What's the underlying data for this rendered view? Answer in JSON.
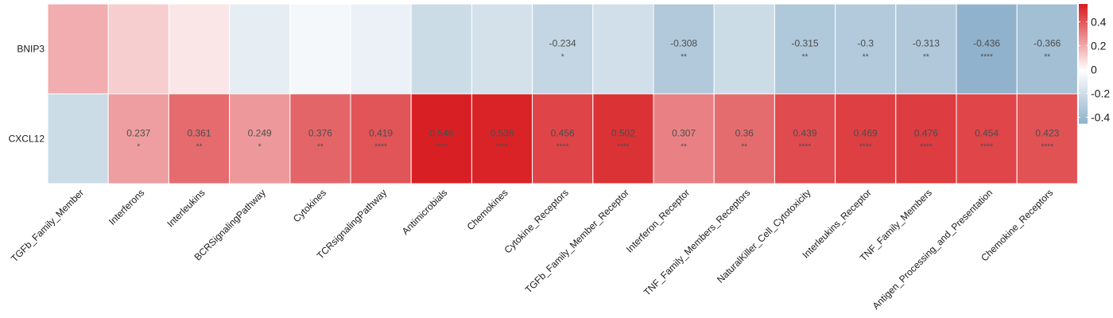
{
  "chart_data": {
    "type": "heatmap",
    "rows": [
      "BNIP3",
      "CXCL12"
    ],
    "columns": [
      "TGFb_Family_Member",
      "Interferons",
      "Interleukins",
      "BCRSignalingPathway",
      "Cytokines",
      "TCRsignalingPathway",
      "Antimicrobials",
      "Chemokines",
      "Cytokine_Receptors",
      "TGFb_Family_Member_Receptor",
      "Interferon_Receptor",
      "TNF_Family_Members_Receptors",
      "NaturalKiller_Cell_Cytotoxicity",
      "Interleukins_Receptor",
      "TNF_Family_Members",
      "Antigen_Processing_and_Presentation",
      "Chemokine_Receptors"
    ],
    "values": [
      [
        0.2,
        0.12,
        0.06,
        -0.1,
        -0.04,
        -0.08,
        -0.2,
        -0.17,
        -0.234,
        -0.18,
        -0.308,
        -0.2,
        -0.315,
        -0.3,
        -0.313,
        -0.436,
        -0.366
      ],
      [
        -0.2,
        0.237,
        0.361,
        0.249,
        0.376,
        0.419,
        0.546,
        0.538,
        0.456,
        0.502,
        0.307,
        0.36,
        0.439,
        0.469,
        0.476,
        0.454,
        0.423
      ]
    ],
    "value_labels": [
      [
        "",
        "",
        "",
        "",
        "",
        "",
        "",
        "",
        "-0.234",
        "",
        "-0.308",
        "",
        "-0.315",
        "-0.3",
        "-0.313",
        "-0.436",
        "-0.366"
      ],
      [
        "",
        "0.237",
        "0.361",
        "0.249",
        "0.376",
        "0.419",
        "0.546",
        "0.538",
        "0.456",
        "0.502",
        "0.307",
        "0.36",
        "0.439",
        "0.469",
        "0.476",
        "0.454",
        "0.423"
      ]
    ],
    "significance": [
      [
        "",
        "",
        "",
        "",
        "",
        "",
        "",
        "",
        "*",
        "",
        "**",
        "",
        "**",
        "**",
        "**",
        "****",
        "**"
      ],
      [
        "",
        "*",
        "**",
        "*",
        "**",
        "****",
        "****",
        "****",
        "****",
        "****",
        "**",
        "**",
        "****",
        "****",
        "****",
        "****",
        "****"
      ]
    ],
    "color_scale": {
      "min": -0.45,
      "max": 0.55,
      "low_color": "#8db0ca",
      "mid_color": "#ffffff",
      "high_color": "#d81e22"
    },
    "legend": {
      "placement": "right",
      "ticks": [
        "0.4",
        "0.2",
        "0",
        "-0.2",
        "-0.4"
      ],
      "tick_values": [
        0.4,
        0.2,
        0,
        -0.2,
        -0.4
      ]
    }
  }
}
